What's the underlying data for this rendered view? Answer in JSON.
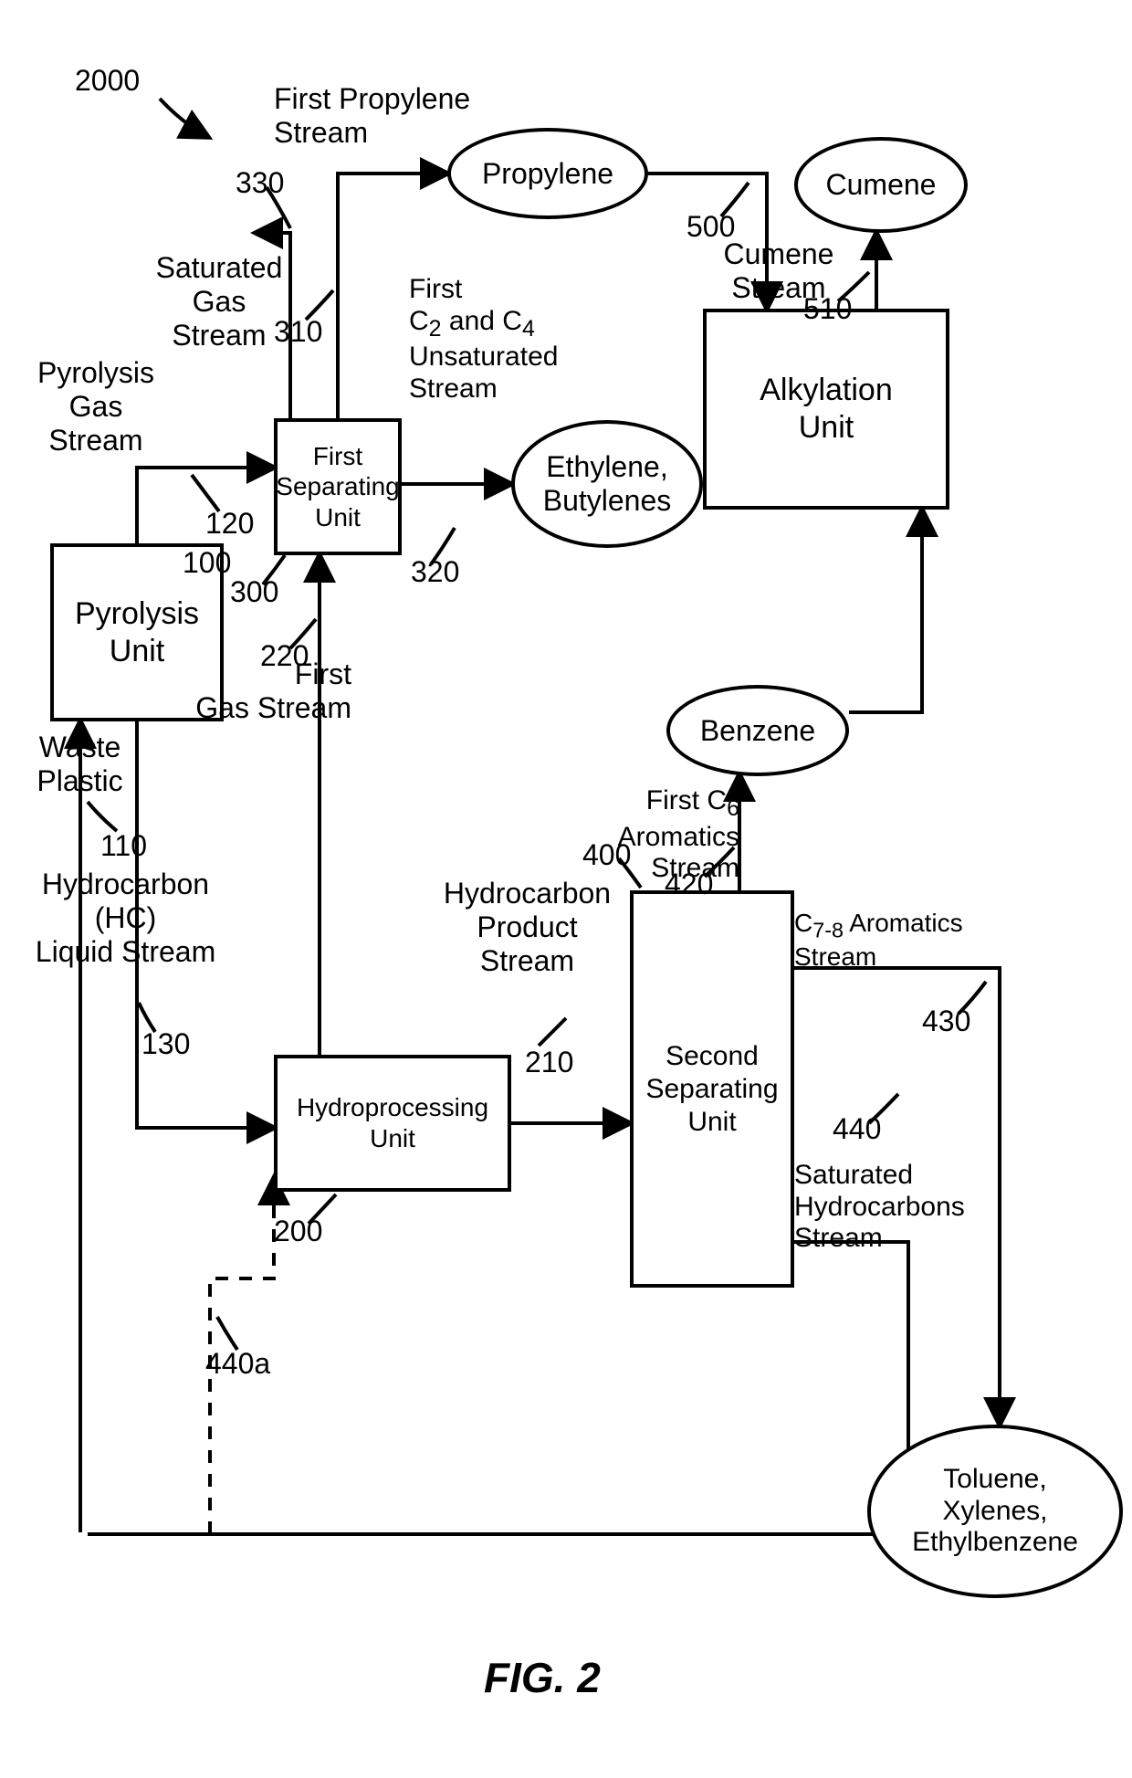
{
  "title": "2000",
  "figure": "FIG. 2",
  "boxes": {
    "pyro": {
      "label": "Pyrolysis\nUnit"
    },
    "sep1": {
      "label": "First\nSeparating\nUnit"
    },
    "hydro": {
      "label": "Hydroprocessing\nUnit"
    },
    "sep2": {
      "label": "Second\nSeparating\nUnit"
    },
    "alk": {
      "label": "Alkylation\nUnit"
    }
  },
  "ellipses": {
    "propylene": "Propylene",
    "ethbut": "Ethylene,\nButylenes",
    "cumene": "Cumene",
    "benzene": "Benzene",
    "tolxyl": "Toluene,\nXylenes,\nEthylbenzene"
  },
  "labels": {
    "waste": "Waste\nPlastic",
    "pyro_gas": "Pyrolysis\nGas\nStream",
    "hc_liquid": "Hydrocarbon\n(HC)\nLiquid Stream",
    "sat_gas": "Saturated\nGas\nStream",
    "first_prop": "First Propylene\nStream",
    "c2c4": "First\nC₂ and C₄\nUnsaturated\nStream",
    "first_gas": "First\nGas Stream",
    "hc_prod": "Hydrocarbon\nProduct\nStream",
    "cumene_stream": "Cumene\nStream",
    "first_c6": "First C₆\nAromatics\nStream",
    "c78": "C₇₋₈ Aromatics Stream",
    "sat_hc": "Saturated\nHydrocarbons\nStream"
  },
  "refs": {
    "r100": "100",
    "r110": "110",
    "r120": "120",
    "r130": "130",
    "r200": "200",
    "r210": "210",
    "r220": "220",
    "r300": "300",
    "r310": "310",
    "r320": "320",
    "r330": "330",
    "r400": "400",
    "r420": "420",
    "r430": "430",
    "r440": "440",
    "r440a": "440a",
    "r500": "500",
    "r510": "510"
  },
  "style": {
    "stroke": "#000000",
    "stroke_width": 4,
    "dash": "14 12"
  }
}
